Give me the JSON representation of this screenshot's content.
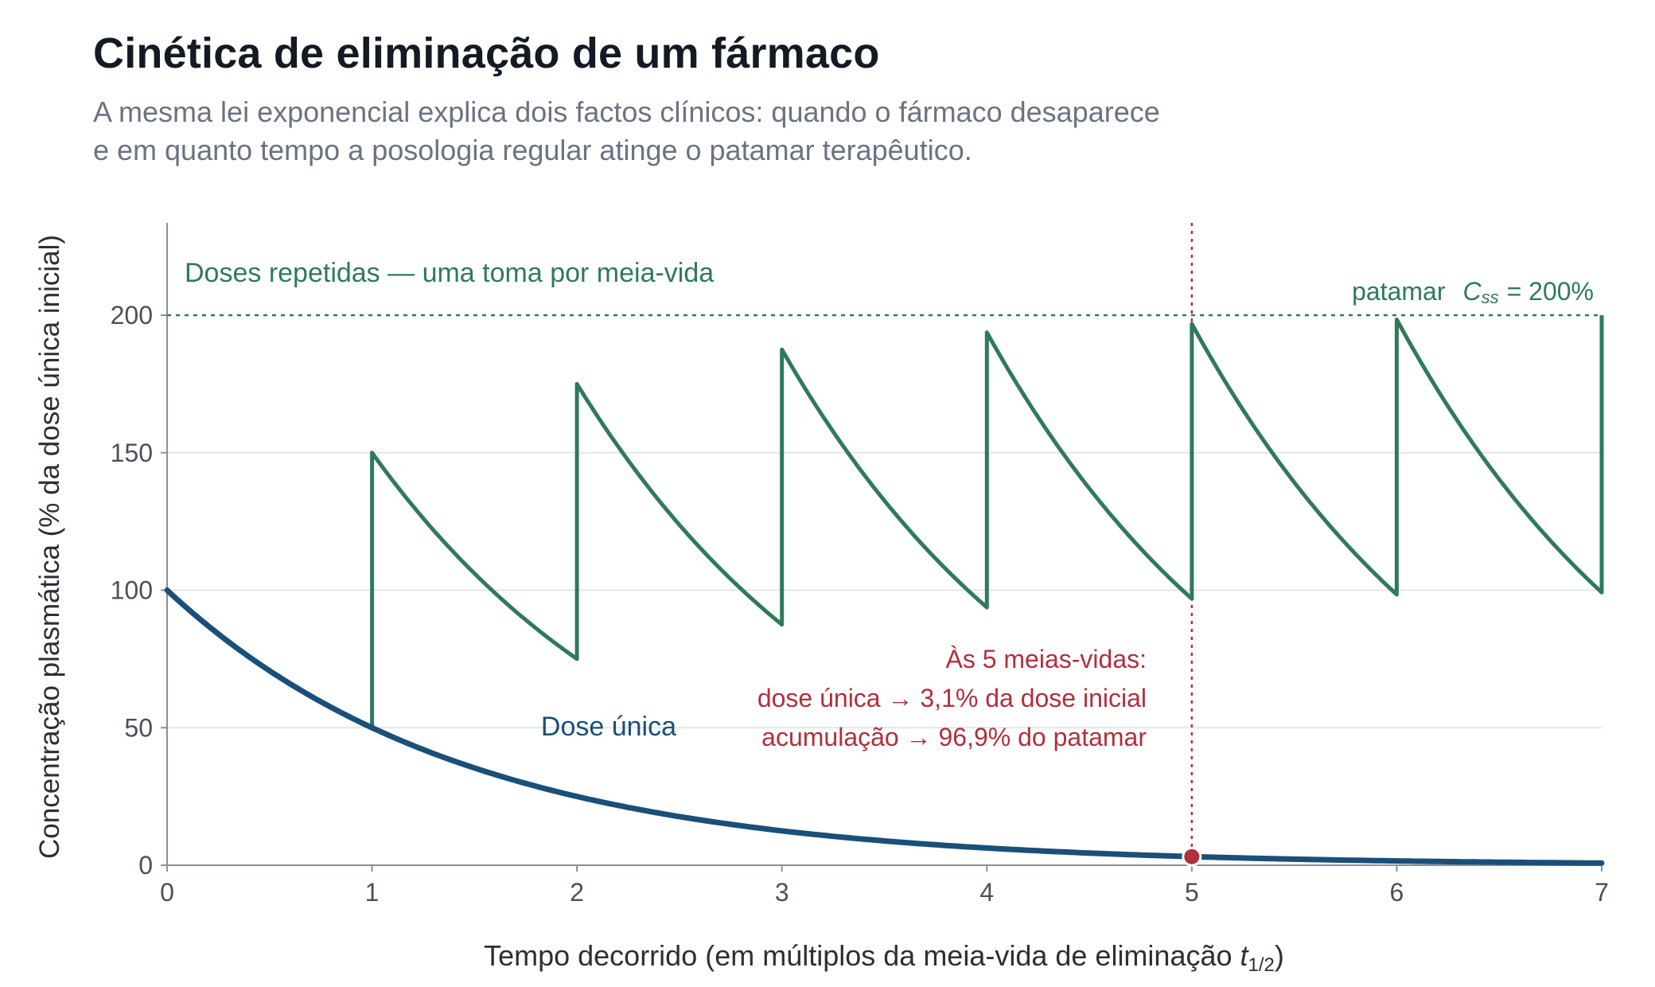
{
  "header": {
    "title": "Cinética de eliminação de um fármaco",
    "subtitle_line1": "A mesma lei exponencial explica dois factos clínicos: quando o fármaco desaparece",
    "subtitle_line2": "e em quanto tempo a posologia regular atinge o patamar terapêutico."
  },
  "chart_data": {
    "type": "line",
    "xlabel_main": "Tempo decorrido (em múltiplos da meia-vida de eliminação ",
    "xlabel_var": "t",
    "xlabel_sub": "1/2",
    "xlabel_close": ")",
    "ylabel": "Concentração plasmática (% da dose única inicial)",
    "xlim": [
      0,
      7
    ],
    "ylim": [
      0,
      230
    ],
    "x_ticks": [
      0,
      1,
      2,
      3,
      4,
      5,
      6,
      7
    ],
    "y_ticks": [
      0,
      50,
      100,
      150,
      200
    ],
    "grid": "horizontal",
    "colors": {
      "single": "#1a4f7a",
      "repeated": "#2f7a5a",
      "highlight": "#b0303c"
    },
    "series": [
      {
        "name": "Dose única",
        "x": [
          0,
          1,
          2,
          3,
          4,
          5,
          6,
          7
        ],
        "values": [
          100,
          50,
          25,
          12.5,
          6.25,
          3.125,
          1.5625,
          0.78125
        ]
      },
      {
        "name": "Doses repetidas — uma toma por meia-vida",
        "dose_times": [
          0,
          1,
          2,
          3,
          4,
          5,
          6
        ],
        "peaks": [
          100,
          150,
          175,
          187.5,
          193.75,
          196.875,
          198.4375
        ],
        "troughs": [
          50,
          75,
          87.5,
          93.75,
          96.875,
          98.4375,
          99.21875
        ]
      }
    ],
    "plateau": {
      "value": 200,
      "label_prefix": "patamar",
      "label_var": "C",
      "label_sub": "ss",
      "label_value": "= 200%"
    },
    "marker": {
      "x": 5,
      "y": 3.125
    },
    "annotation": [
      "Às 5 meias-vidas:",
      "dose única → 3,1% da dose inicial",
      "acumulação → 96,9% do patamar"
    ]
  }
}
